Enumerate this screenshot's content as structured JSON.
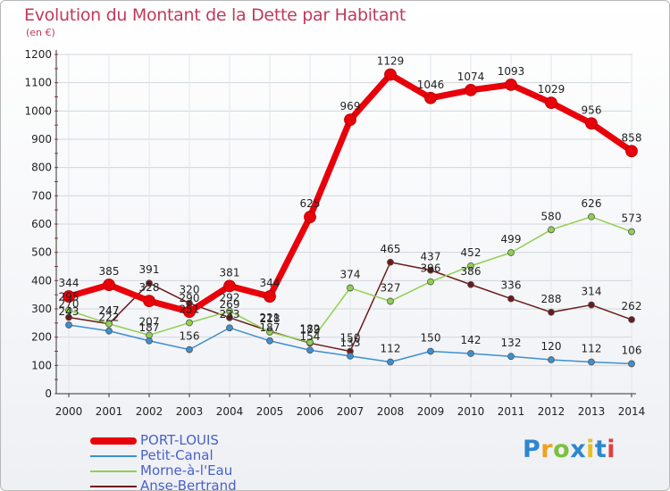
{
  "header": {
    "title": "Evolution du Montant de la Dette par Habitant",
    "unit": "(en €)"
  },
  "brand": {
    "letters": [
      "P",
      "r",
      "o",
      "x",
      "i",
      "t",
      "i"
    ],
    "colors": [
      "#2f86d0",
      "#f0a020",
      "#7cc040",
      "#2f86d0",
      "#e8c020",
      "#2f86d0",
      "#e04040"
    ]
  },
  "chart_data": {
    "type": "line",
    "title": "Evolution du Montant de la Dette par Habitant",
    "ylabel": "(en €)",
    "xlabel": "",
    "ylim": [
      0,
      1200
    ],
    "yticks": [
      0,
      100,
      200,
      300,
      400,
      500,
      600,
      700,
      800,
      900,
      1000,
      1100,
      1200
    ],
    "grid": true,
    "legend_position": "bottom-left",
    "categories": [
      "2000",
      "2001",
      "2002",
      "2003",
      "2004",
      "2005",
      "2006",
      "2007",
      "2008",
      "2009",
      "2010",
      "2011",
      "2012",
      "2013",
      "2014"
    ],
    "series": [
      {
        "name": "PORT-LOUIS",
        "color": "#e8000a",
        "values": [
          344,
          385,
          328,
          290,
          381,
          344,
          625,
          969,
          1129,
          1046,
          1074,
          1093,
          1029,
          956,
          858
        ],
        "labels": [
          "344",
          "385",
          "328",
          "290",
          "381",
          "344",
          "625",
          "969",
          "1129",
          "1046",
          "1074",
          "1093",
          "1029",
          "956",
          "858"
        ]
      },
      {
        "name": "Petit-Canal",
        "color": "#3d8fd0",
        "values": [
          243,
          222,
          187,
          156,
          233,
          187,
          154,
          133,
          112,
          150,
          142,
          132,
          120,
          112,
          106
        ],
        "labels": [
          "243",
          "222",
          "187",
          "156",
          "233",
          "187",
          "154",
          "133",
          "112",
          "150",
          "142",
          "132",
          "120",
          "112",
          "106"
        ]
      },
      {
        "name": "Morne-à-l'Eau",
        "color": "#8fd050",
        "values": [
          295,
          247,
          207,
          251,
          292,
          218,
          182,
          374,
          327,
          396,
          452,
          499,
          580,
          626,
          573
        ],
        "labels": [
          "295",
          "247",
          "207",
          "251",
          "292",
          "218",
          "182",
          "374",
          "327",
          "396",
          "452",
          "499",
          "580",
          "626",
          "573"
        ]
      },
      {
        "name": "Anse-Bertrand",
        "color": "#6b1a1a",
        "values": [
          270,
          247,
          391,
          320,
          269,
          221,
          179,
          150,
          465,
          437,
          386,
          336,
          288,
          314,
          262
        ],
        "labels": [
          "270",
          "247",
          "391",
          "320",
          "269",
          "221",
          "179",
          "150",
          "465",
          "437",
          "386",
          "336",
          "288",
          "314",
          "262"
        ]
      }
    ]
  }
}
